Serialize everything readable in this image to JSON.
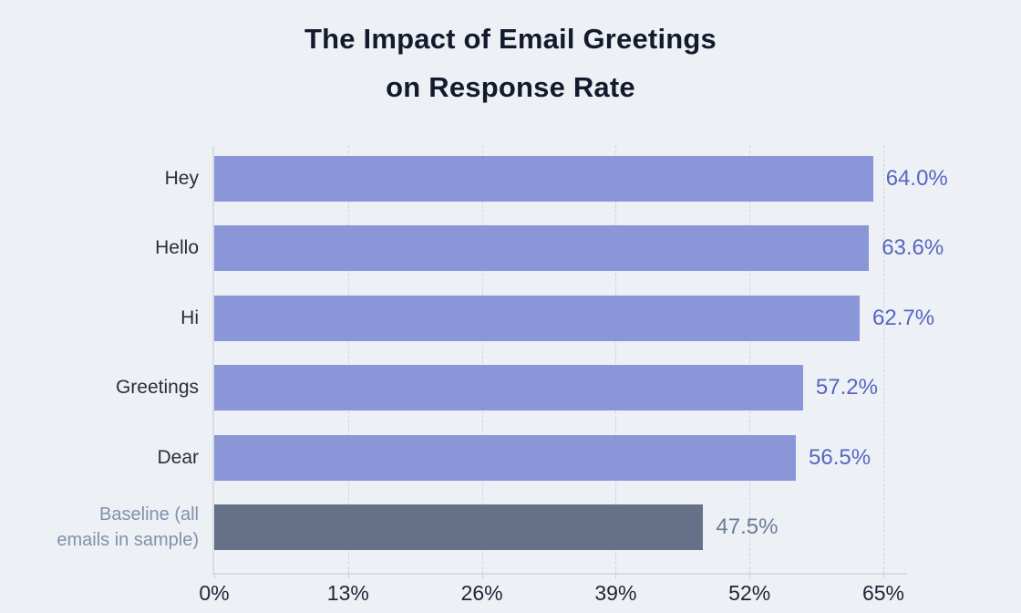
{
  "title": {
    "line1": "The Impact of Email Greetings",
    "line2": "on Response Rate"
  },
  "chart_data": {
    "type": "bar",
    "orientation": "horizontal",
    "title": "The Impact of Email Greetings on Response Rate",
    "categories": [
      "Hey",
      "Hello",
      "Hi",
      "Greetings",
      "Dear",
      "Baseline (all\nemails in sample)"
    ],
    "values": [
      64.0,
      63.6,
      62.7,
      57.2,
      56.5,
      47.5
    ],
    "value_labels": [
      "64.0%",
      "63.6%",
      "62.7%",
      "57.2%",
      "56.5%",
      "47.5%"
    ],
    "xticks": [
      "0%",
      "13%",
      "26%",
      "39%",
      "52%",
      "65%"
    ],
    "xtick_values": [
      0,
      13,
      26,
      39,
      52,
      65
    ],
    "xlim": [
      0,
      65
    ],
    "ylabel": "",
    "xlabel": "",
    "grid": "vertical-dashed",
    "legend": "none",
    "bar_colors": [
      "#8b96d9",
      "#8b96d9",
      "#8b96d9",
      "#8b96d9",
      "#8b96d9",
      "#657089"
    ],
    "value_label_colors": [
      "#5566c1",
      "#5566c1",
      "#5566c1",
      "#5566c1",
      "#5566c1",
      "#6c7b97"
    ],
    "category_label_colors": [
      "#2a2e3b",
      "#2a2e3b",
      "#2a2e3b",
      "#2a2e3b",
      "#2a2e3b",
      "#8091ab"
    ],
    "colors": {
      "background": "#edf1f6",
      "title": "#141a2c",
      "gridline": "#ced3dd",
      "axis_line": "#d8dce5",
      "tick_mark": "#c8cdd8",
      "tick_label": "#1e2534"
    }
  }
}
